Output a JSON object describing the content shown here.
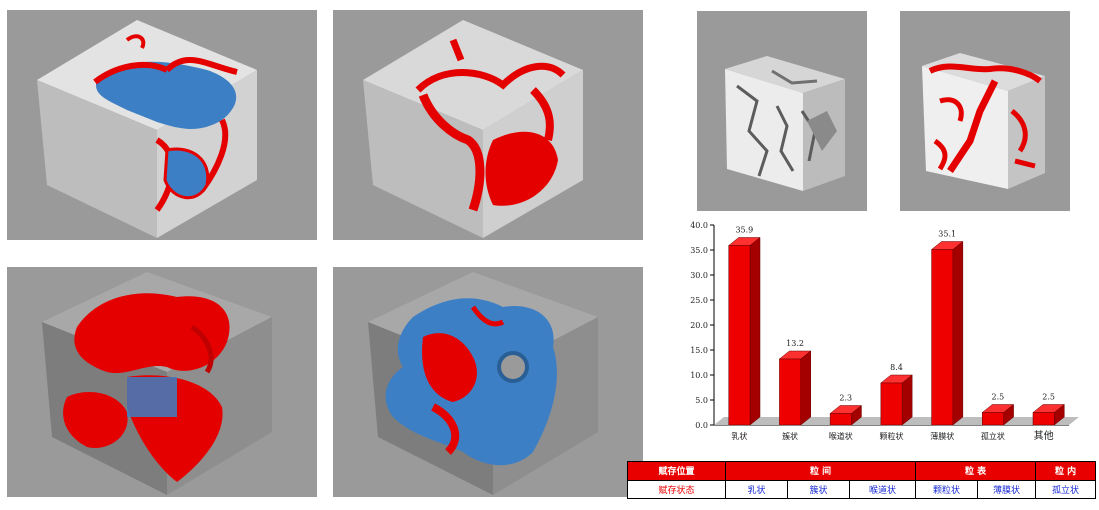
{
  "colors": {
    "panel_bg": "#9a9a9a",
    "cube_light": "#e6e6e6",
    "cube_mid": "#c9c9c9",
    "cube_dark": "#5c5c5c",
    "red": "#e50000",
    "blue": "#3d7fc4",
    "bar_front": "#ee0000",
    "bar_side": "#a40000",
    "bar_top": "#ff3030",
    "header_bg": "#e80000",
    "blue_text": "#1a2bd6"
  },
  "panels": [
    {
      "id": "p1",
      "content": "cube-red-blue-surface"
    },
    {
      "id": "p2",
      "content": "cube-red-surface"
    },
    {
      "id": "p3",
      "content": "cube-red-volume"
    },
    {
      "id": "p4",
      "content": "cube-red-blue-volume"
    },
    {
      "id": "p5",
      "content": "cube-grey-pore"
    },
    {
      "id": "p6",
      "content": "cube-red-network"
    }
  ],
  "chart_data": {
    "type": "bar",
    "categories": [
      "乳状",
      "簇状",
      "喉道状",
      "颗粒状",
      "薄膜状",
      "孤立状",
      "其他"
    ],
    "values": [
      35.9,
      13.2,
      2.3,
      8.4,
      35.1,
      2.5,
      2.5
    ],
    "value_labels": [
      "35.9",
      "13.2",
      "2.3",
      "8.4",
      "35.1",
      "2.5",
      "2.5"
    ],
    "ylim": [
      0,
      40
    ],
    "yticks": [
      "0.0",
      "5.0",
      "10.0",
      "15.0",
      "20.0",
      "25.0",
      "30.0",
      "35.0",
      "40.0"
    ],
    "grid": false,
    "style": "3d"
  },
  "table": {
    "header": [
      "赋存位置",
      "粒 间",
      "粒 表",
      "粒 内"
    ],
    "row": [
      "赋存状态",
      "乳状",
      "簇状",
      "喉道状",
      "颗粒状",
      "薄膜状",
      "孤立状"
    ]
  }
}
